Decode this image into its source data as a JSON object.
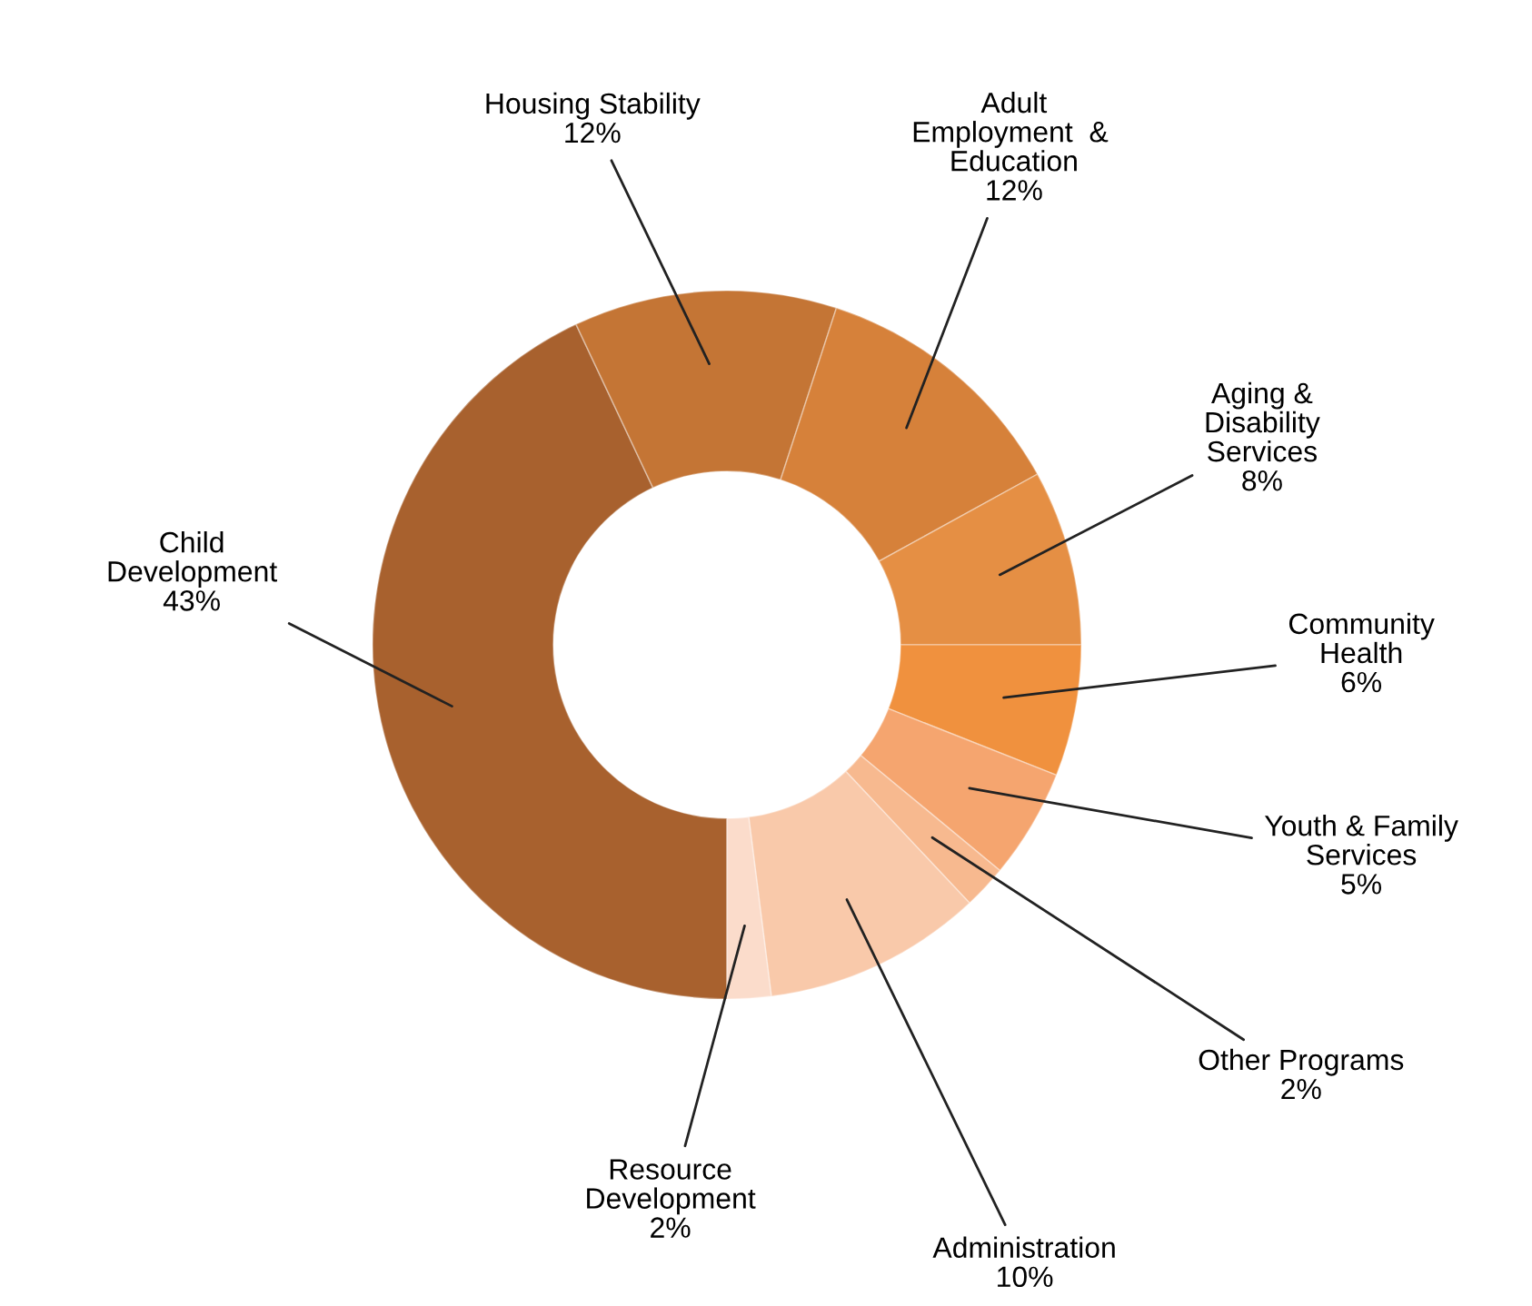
{
  "chart_data": {
    "type": "donut",
    "categories": [
      "Child\nDevelopment",
      "Housing Stability",
      "Adult\nEmployment  & \nEducation",
      "Aging &\nDisability\nServices",
      "Community\nHealth",
      "Youth & Family\nServices",
      "Other Programs",
      "Administration",
      "Resource\nDevelopment"
    ],
    "values": [
      43,
      12,
      12,
      8,
      6,
      5,
      2,
      10,
      2
    ],
    "value_labels": [
      "43%",
      "12%",
      "12%",
      "8%",
      "6%",
      "5%",
      "2%",
      "10%",
      "2%"
    ],
    "colors": [
      "#a8612e",
      "#c47535",
      "#d6813a",
      "#e58f44",
      "#f0913e",
      "#f5a56f",
      "#f7b98f",
      "#f9c9aa",
      "#fbdccb"
    ],
    "legend": false
  }
}
